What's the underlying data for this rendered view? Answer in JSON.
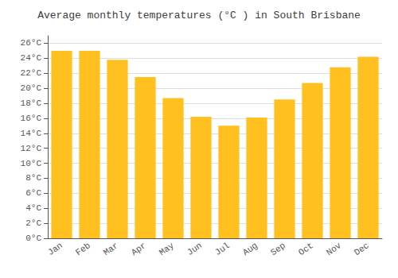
{
  "chart_data": {
    "type": "bar",
    "title": "Average monthly temperatures (°C ) in South Brisbane",
    "categories": [
      "Jan",
      "Feb",
      "Mar",
      "Apr",
      "May",
      "Jun",
      "Jul",
      "Aug",
      "Sep",
      "Oct",
      "Nov",
      "Dec"
    ],
    "values": [
      25.0,
      25.0,
      23.8,
      21.5,
      18.7,
      16.2,
      15.0,
      16.1,
      18.5,
      20.7,
      22.8,
      24.2
    ],
    "color": "#FFC020",
    "ylim": [
      0,
      27
    ],
    "yticks": [
      {
        "value": 0,
        "label": "0°C"
      },
      {
        "value": 2,
        "label": "2°C"
      },
      {
        "value": 4,
        "label": "4°C"
      },
      {
        "value": 6,
        "label": "6°C"
      },
      {
        "value": 8,
        "label": "8°C"
      },
      {
        "value": 10,
        "label": "10°C"
      },
      {
        "value": 12,
        "label": "12°C"
      },
      {
        "value": 14,
        "label": "14°C"
      },
      {
        "value": 16,
        "label": "16°C"
      },
      {
        "value": 18,
        "label": "18°C"
      },
      {
        "value": 20,
        "label": "20°C"
      },
      {
        "value": 22,
        "label": "22°C"
      },
      {
        "value": 24,
        "label": "24°C"
      },
      {
        "value": 26,
        "label": "26°C"
      }
    ],
    "grid": true
  }
}
